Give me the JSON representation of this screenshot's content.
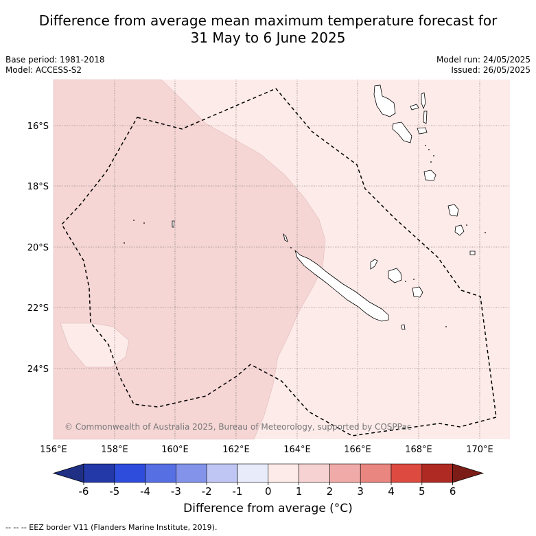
{
  "title_line1": "Difference from average mean maximum temperature forecast for",
  "title_line2": "31 May to 6 June 2025",
  "meta_left": {
    "base_period": "Base period: 1981-2018",
    "model": "Model: ACCESS-S2"
  },
  "meta_right": {
    "model_run": "Model run: 24/05/2025",
    "issued": "Issued: 26/05/2025"
  },
  "copyright": "© Commonwealth of Australia 2025, Bureau of Meteorology, supported by COSPPac",
  "lon_labels": [
    "156°E",
    "158°E",
    "160°E",
    "162°E",
    "164°E",
    "166°E",
    "168°E",
    "170°E"
  ],
  "lat_labels": [
    "16°S",
    "18°S",
    "20°S",
    "22°S",
    "24°S"
  ],
  "colorbar": {
    "ticks": [
      "-6",
      "-5",
      "-4",
      "-3",
      "-2",
      "-1",
      "0",
      "1",
      "2",
      "3",
      "4",
      "5",
      "6"
    ],
    "colors": [
      "#2339a8",
      "#2e4ddc",
      "#5670e3",
      "#8393ea",
      "#c0c6f3",
      "#e8ebfa",
      "#fcebe9",
      "#f6d3d2",
      "#f0aba8",
      "#e8867f",
      "#dd4a3f",
      "#ae2a23"
    ],
    "under_color": "#1e2f84",
    "over_color": "#7c1c17",
    "label": "Difference from average (°C)"
  },
  "map_colors": {
    "zone_0_to_1": "#fcebe9",
    "zone_1_to_2": "#f5d6d5",
    "land_outline": "#000000"
  },
  "legend_footnote": "-- -- -- EEZ border V11 (Flanders Marine Institute, 2019)."
}
